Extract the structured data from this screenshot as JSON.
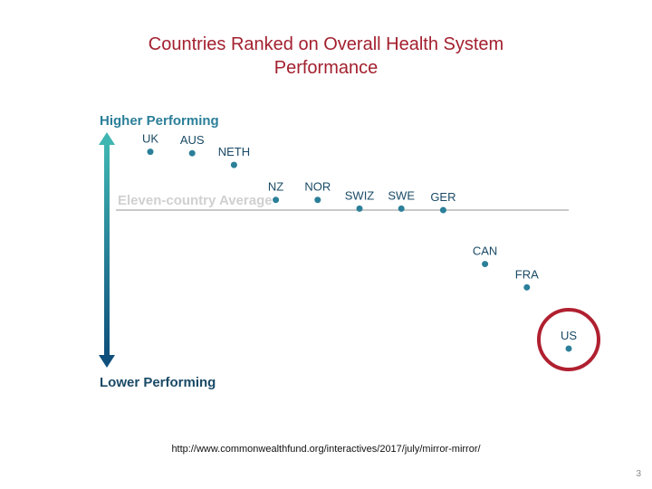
{
  "slide": {
    "title_line1": "Countries Ranked on Overall Health System",
    "title_line2": "Performance",
    "source_url": "http://www.commonwealthfund.org/interactives/2017/july/mirror-mirror/",
    "page_number": "3"
  },
  "chart_data": {
    "type": "scatter",
    "title": "Countries Ranked on Overall Health System Performance",
    "axis_top_label": "Higher Performing",
    "axis_bottom_label": "Lower Performing",
    "average_label": "Eleven-country Average",
    "average_value": 0,
    "ylim": [
      -1.0,
      0.5
    ],
    "points": [
      {
        "label": "UK",
        "rank": 1,
        "score": 0.4
      },
      {
        "label": "AUS",
        "rank": 2,
        "score": 0.39
      },
      {
        "label": "NETH",
        "rank": 3,
        "score": 0.31
      },
      {
        "label": "NZ",
        "rank": 4,
        "score": 0.07
      },
      {
        "label": "NOR",
        "rank": 5,
        "score": 0.07
      },
      {
        "label": "SWIZ",
        "rank": 6,
        "score": 0.01
      },
      {
        "label": "SWE",
        "rank": 7,
        "score": 0.01
      },
      {
        "label": "GER",
        "rank": 8,
        "score": 0.0
      },
      {
        "label": "CAN",
        "rank": 9,
        "score": -0.37
      },
      {
        "label": "FRA",
        "rank": 10,
        "score": -0.53
      },
      {
        "label": "US",
        "rank": 11,
        "score": -0.95
      }
    ],
    "highlight": "US",
    "colors": {
      "title": "#a3202f",
      "point": "#2b7f99",
      "label": "#1a4a66",
      "average_line": "#c9c9c9",
      "average_text": "#d0d0d0",
      "highlight_circle": "#b02030",
      "arrow_top": "#3fb6b2",
      "arrow_bottom": "#0f4f7c"
    }
  }
}
